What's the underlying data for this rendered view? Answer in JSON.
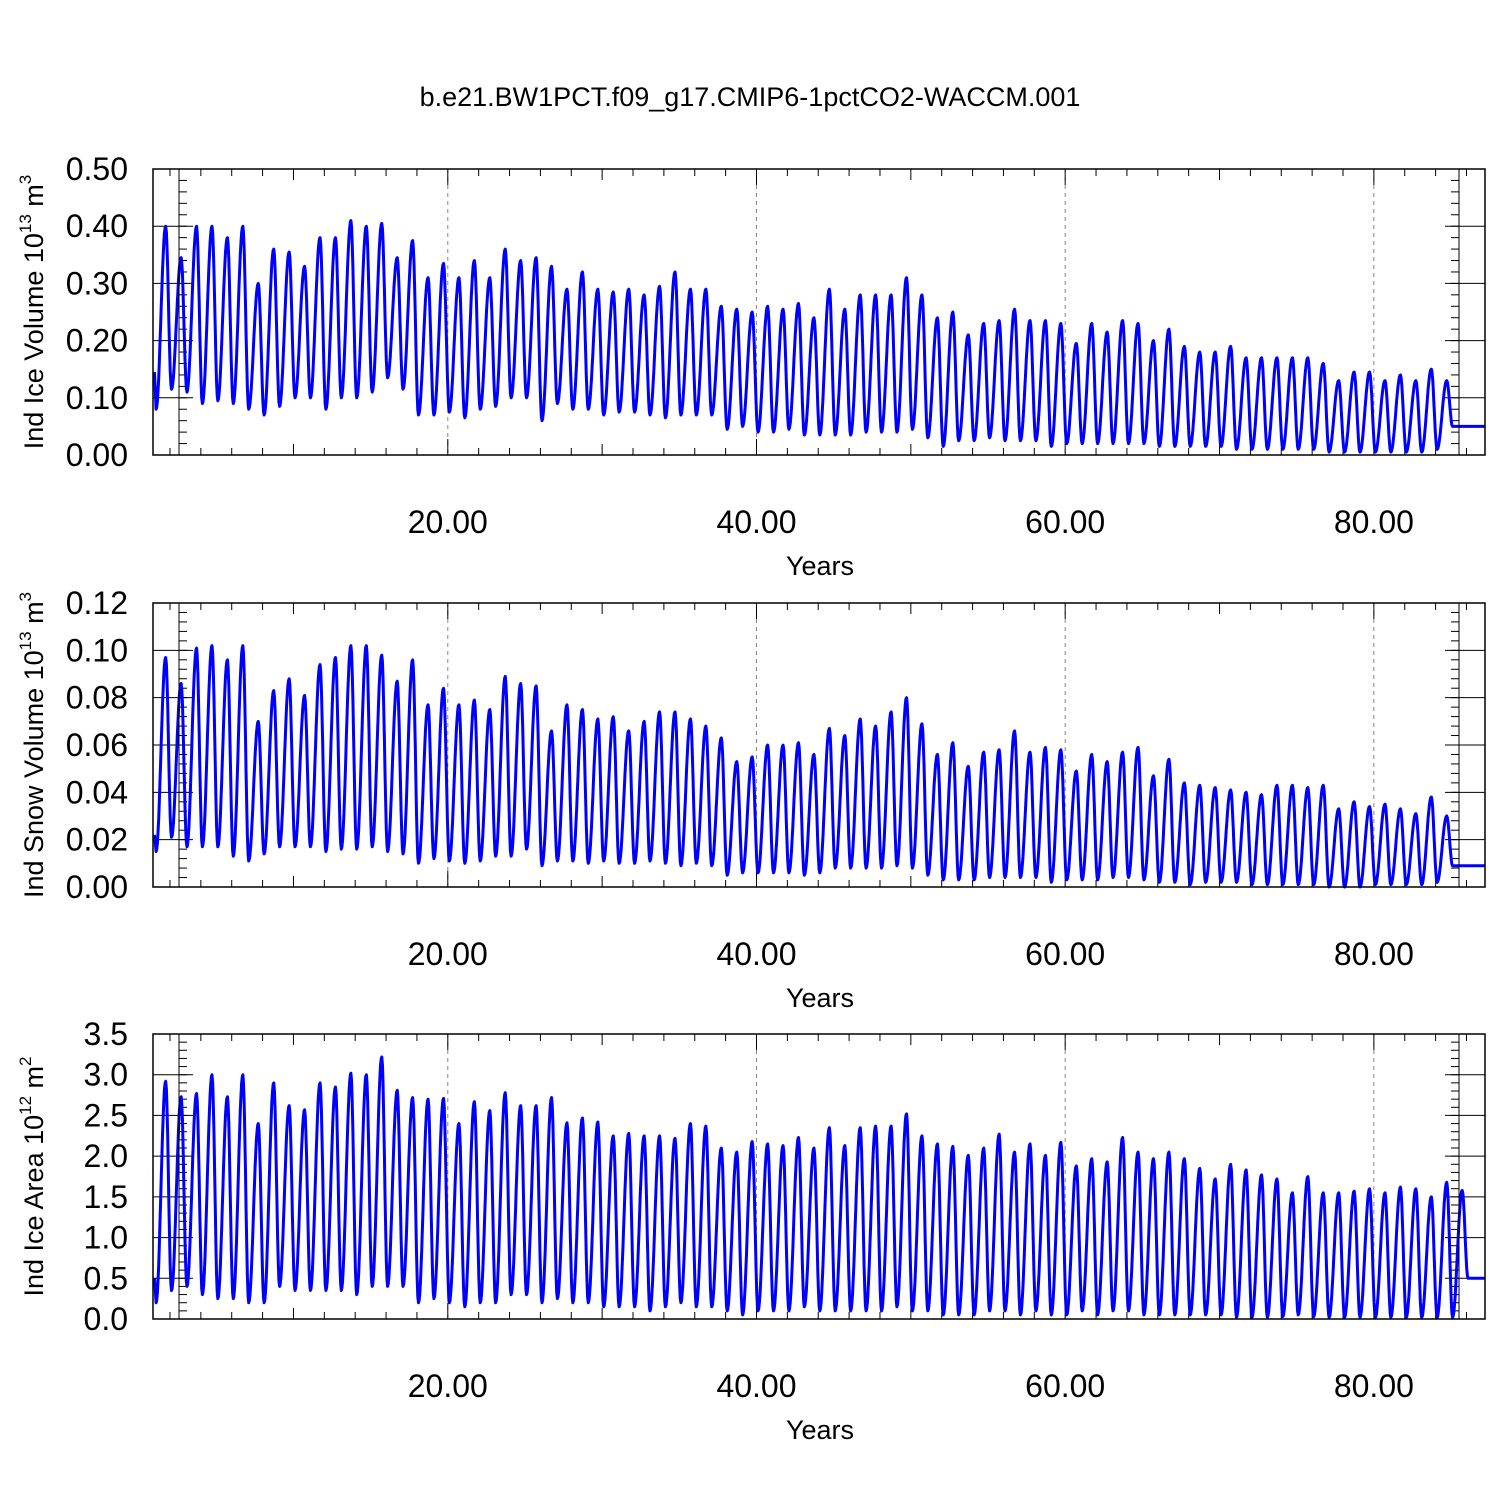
{
  "figure": {
    "title": "b.e21.BW1PCT.f09_g17.CMIP6-1pctCO2-WACCM.001",
    "line_color": "#0000ff"
  },
  "chart_data": [
    {
      "type": "line",
      "ylabel_main": "Ind Ice Volume 10",
      "ylabel_exp": "13",
      "ylabel_unit": " m",
      "ylabel_unit_exp": "3",
      "xlabel": "Years",
      "xlim": [
        0.9,
        87.2
      ],
      "ylim": [
        0,
        0.5
      ],
      "xticks": [
        20,
        40,
        60,
        80
      ],
      "xtick_labels": [
        "20.00",
        "40.00",
        "60.00",
        "80.00"
      ],
      "yticks": [
        0,
        0.1,
        0.2,
        0.3,
        0.4,
        0.5
      ],
      "ytick_labels": [
        "0.00",
        "0.10",
        "0.20",
        "0.30",
        "0.40",
        "0.50"
      ],
      "grid": "dashed vertical at major x ticks",
      "cycle": "annual (12 monthly points per year)",
      "series": [
        {
          "start_value": 0.145,
          "peaks": [
            0.4,
            0.345,
            0.4,
            0.4,
            0.38,
            0.4,
            0.3,
            0.36,
            0.355,
            0.33,
            0.38,
            0.38,
            0.41,
            0.4,
            0.405,
            0.345,
            0.375,
            0.31,
            0.335,
            0.31,
            0.34,
            0.31,
            0.36,
            0.34,
            0.345,
            0.33,
            0.29,
            0.32,
            0.29,
            0.285,
            0.29,
            0.28,
            0.295,
            0.32,
            0.29,
            0.29,
            0.26,
            0.255,
            0.25,
            0.26,
            0.255,
            0.265,
            0.24,
            0.29,
            0.255,
            0.28,
            0.28,
            0.28,
            0.31,
            0.28,
            0.24,
            0.25,
            0.21,
            0.23,
            0.235,
            0.255,
            0.235,
            0.235,
            0.23,
            0.195,
            0.23,
            0.215,
            0.235,
            0.23,
            0.2,
            0.22,
            0.19,
            0.18,
            0.18,
            0.19,
            0.17,
            0.17,
            0.17,
            0.17,
            0.17,
            0.16,
            0.13,
            0.145,
            0.145,
            0.13,
            0.14,
            0.13,
            0.15,
            0.13
          ],
          "troughs": [
            0.08,
            0.115,
            0.11,
            0.09,
            0.095,
            0.09,
            0.08,
            0.07,
            0.085,
            0.1,
            0.1,
            0.08,
            0.1,
            0.1,
            0.11,
            0.135,
            0.115,
            0.07,
            0.07,
            0.075,
            0.065,
            0.08,
            0.085,
            0.1,
            0.1,
            0.06,
            0.09,
            0.08,
            0.08,
            0.07,
            0.075,
            0.075,
            0.07,
            0.065,
            0.07,
            0.07,
            0.07,
            0.045,
            0.05,
            0.04,
            0.04,
            0.045,
            0.035,
            0.035,
            0.035,
            0.035,
            0.04,
            0.04,
            0.04,
            0.045,
            0.03,
            0.015,
            0.025,
            0.025,
            0.03,
            0.025,
            0.025,
            0.025,
            0.015,
            0.02,
            0.02,
            0.02,
            0.02,
            0.02,
            0.02,
            0.015,
            0.015,
            0.015,
            0.015,
            0.015,
            0.01,
            0.01,
            0.01,
            0.01,
            0.01,
            0.01,
            0.005,
            0.005,
            0.005,
            0.005,
            0.005,
            0.005,
            0.005,
            0.01
          ],
          "end_value": 0.05
        }
      ]
    },
    {
      "type": "line",
      "ylabel_main": "Ind Snow Volume 10",
      "ylabel_exp": "13",
      "ylabel_unit": " m",
      "ylabel_unit_exp": "3",
      "xlabel": "Years",
      "xlim": [
        0.9,
        87.2
      ],
      "ylim": [
        0,
        0.12
      ],
      "xticks": [
        20,
        40,
        60,
        80
      ],
      "xtick_labels": [
        "20.00",
        "40.00",
        "60.00",
        "80.00"
      ],
      "yticks": [
        0,
        0.02,
        0.04,
        0.06,
        0.08,
        0.1,
        0.12
      ],
      "ytick_labels": [
        "0.00",
        "0.02",
        "0.04",
        "0.06",
        "0.08",
        "0.10",
        "0.12"
      ],
      "grid": "dashed vertical at major x ticks",
      "cycle": "annual (12 monthly points per year)",
      "series": [
        {
          "start_value": 0.022,
          "peaks": [
            0.097,
            0.086,
            0.101,
            0.102,
            0.096,
            0.102,
            0.07,
            0.083,
            0.088,
            0.081,
            0.094,
            0.097,
            0.102,
            0.102,
            0.098,
            0.087,
            0.096,
            0.077,
            0.084,
            0.077,
            0.079,
            0.075,
            0.089,
            0.086,
            0.085,
            0.066,
            0.077,
            0.075,
            0.071,
            0.072,
            0.066,
            0.07,
            0.074,
            0.074,
            0.071,
            0.068,
            0.063,
            0.053,
            0.055,
            0.06,
            0.06,
            0.061,
            0.056,
            0.067,
            0.064,
            0.071,
            0.068,
            0.074,
            0.08,
            0.069,
            0.056,
            0.061,
            0.051,
            0.057,
            0.058,
            0.066,
            0.057,
            0.059,
            0.058,
            0.049,
            0.056,
            0.053,
            0.057,
            0.059,
            0.047,
            0.054,
            0.044,
            0.043,
            0.042,
            0.041,
            0.04,
            0.039,
            0.043,
            0.043,
            0.042,
            0.043,
            0.033,
            0.036,
            0.034,
            0.035,
            0.033,
            0.031,
            0.038,
            0.03
          ],
          "troughs": [
            0.015,
            0.021,
            0.017,
            0.017,
            0.017,
            0.013,
            0.011,
            0.014,
            0.017,
            0.017,
            0.017,
            0.015,
            0.016,
            0.016,
            0.017,
            0.015,
            0.014,
            0.01,
            0.012,
            0.011,
            0.01,
            0.011,
            0.013,
            0.013,
            0.016,
            0.009,
            0.011,
            0.011,
            0.01,
            0.011,
            0.01,
            0.01,
            0.011,
            0.01,
            0.009,
            0.01,
            0.009,
            0.005,
            0.006,
            0.006,
            0.006,
            0.006,
            0.005,
            0.006,
            0.008,
            0.008,
            0.008,
            0.008,
            0.009,
            0.008,
            0.005,
            0.003,
            0.003,
            0.003,
            0.004,
            0.004,
            0.004,
            0.004,
            0.002,
            0.003,
            0.003,
            0.003,
            0.004,
            0.004,
            0.003,
            0.002,
            0.002,
            0.001,
            0.002,
            0.002,
            0.002,
            0.001,
            0.001,
            0.001,
            0.001,
            0.001,
            0.0,
            0.0,
            0.0,
            0.001,
            0.001,
            0.001,
            0.001,
            0.002
          ],
          "end_value": 0.009
        }
      ]
    },
    {
      "type": "line",
      "ylabel_main": "Ind Ice Area 10",
      "ylabel_exp": "12",
      "ylabel_unit": " m",
      "ylabel_unit_exp": "2",
      "xlabel": "Years",
      "xlim": [
        0.9,
        87.2
      ],
      "ylim": [
        0,
        3.5
      ],
      "xticks": [
        20,
        40,
        60,
        80
      ],
      "xtick_labels": [
        "20.00",
        "40.00",
        "60.00",
        "80.00"
      ],
      "yticks": [
        0,
        0.5,
        1.0,
        1.5,
        2.0,
        2.5,
        3.0,
        3.5
      ],
      "ytick_labels": [
        "0.0",
        "0.5",
        "1.0",
        "1.5",
        "2.0",
        "2.5",
        "3.0",
        "3.5"
      ],
      "grid": "dashed vertical at major x ticks",
      "cycle": "annual (12 monthly points per year)",
      "series": [
        {
          "start_value": 0.5,
          "peaks": [
            2.92,
            2.73,
            2.77,
            3.0,
            2.73,
            3.0,
            2.4,
            2.9,
            2.62,
            2.57,
            2.9,
            2.85,
            3.02,
            3.0,
            3.22,
            2.81,
            2.72,
            2.7,
            2.71,
            2.4,
            2.67,
            2.56,
            2.78,
            2.62,
            2.62,
            2.72,
            2.41,
            2.47,
            2.42,
            2.25,
            2.28,
            2.25,
            2.25,
            2.22,
            2.4,
            2.37,
            2.1,
            2.05,
            2.18,
            2.15,
            2.13,
            2.23,
            2.1,
            2.35,
            2.13,
            2.35,
            2.37,
            2.37,
            2.52,
            2.25,
            2.15,
            2.12,
            2.01,
            2.1,
            2.27,
            2.05,
            2.15,
            2.01,
            2.17,
            1.88,
            1.97,
            1.93,
            2.23,
            2.05,
            1.97,
            2.05,
            1.97,
            1.85,
            1.72,
            1.9,
            1.83,
            1.77,
            1.72,
            1.55,
            1.75,
            1.55,
            1.55,
            1.57,
            1.6,
            1.55,
            1.62,
            1.6,
            1.5,
            1.68,
            1.58
          ],
          "troughs": [
            0.2,
            0.35,
            0.4,
            0.3,
            0.25,
            0.25,
            0.2,
            0.2,
            0.4,
            0.35,
            0.35,
            0.35,
            0.35,
            0.3,
            0.4,
            0.4,
            0.4,
            0.2,
            0.25,
            0.2,
            0.15,
            0.2,
            0.2,
            0.3,
            0.3,
            0.2,
            0.25,
            0.2,
            0.2,
            0.15,
            0.15,
            0.15,
            0.1,
            0.15,
            0.2,
            0.15,
            0.15,
            0.1,
            0.05,
            0.1,
            0.1,
            0.1,
            0.15,
            0.1,
            0.1,
            0.1,
            0.1,
            0.1,
            0.15,
            0.1,
            0.1,
            0.05,
            0.05,
            0.05,
            0.1,
            0.1,
            0.05,
            0.1,
            0.05,
            0.05,
            0.1,
            0.05,
            0.1,
            0.1,
            0.05,
            0.05,
            0.05,
            0.05,
            0.05,
            0.05,
            0.02,
            0.02,
            0.02,
            0.03,
            0.05,
            0.03,
            0.02,
            0.02,
            0.02,
            0.02,
            0.02,
            0.02,
            0.02,
            0.02,
            0.02
          ],
          "end_value": 0.5
        }
      ]
    }
  ]
}
